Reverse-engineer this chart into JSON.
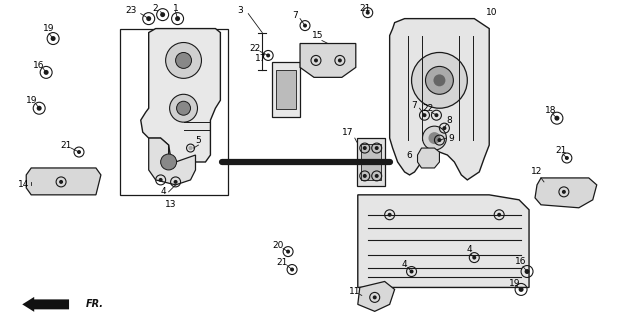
{
  "bg_color": "#ffffff",
  "line_color": "#1a1a1a",
  "text_color": "#000000",
  "fig_width": 6.19,
  "fig_height": 3.2,
  "dpi": 100
}
